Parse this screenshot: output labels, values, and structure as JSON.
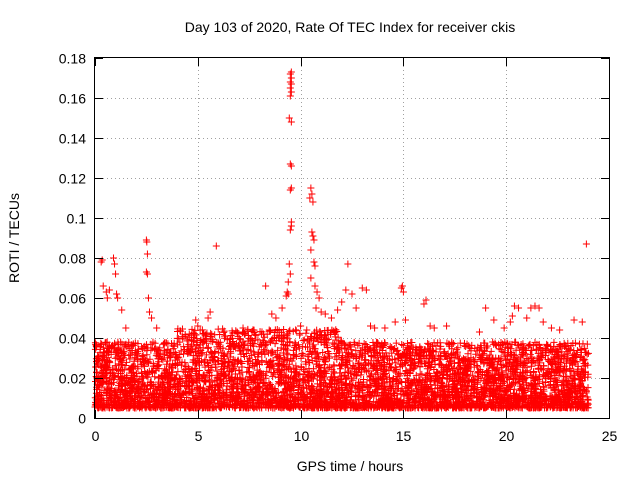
{
  "chart_data": {
    "type": "scatter",
    "title": "Day 103 of 2020, Rate Of TEC Index for receiver ckis",
    "xlabel": "GPS time / hours",
    "ylabel": "ROTI / TECUs",
    "xlim": [
      0,
      25
    ],
    "ylim": [
      0,
      0.18
    ],
    "xticks": [
      "0",
      "5",
      "10",
      "15",
      "20",
      "25"
    ],
    "yticks": [
      "0",
      "0.02",
      "0.04",
      "0.06",
      "0.08",
      "0.1",
      "0.12",
      "0.14",
      "0.16",
      "0.18"
    ],
    "grid": true,
    "marker": "+",
    "color": "#ff0000",
    "background_band": {
      "x_range": [
        0,
        24
      ],
      "typical_low": 0.005,
      "typical_high": 0.035,
      "description": "dense cloud of points, most ROTI values between about 0.005 and 0.035 TECU"
    },
    "series": [
      {
        "name": "ROTI",
        "points": [
          [
            0.3,
            0.078
          ],
          [
            0.35,
            0.079
          ],
          [
            0.4,
            0.066
          ],
          [
            0.55,
            0.063
          ],
          [
            0.6,
            0.06
          ],
          [
            0.7,
            0.064
          ],
          [
            0.9,
            0.08
          ],
          [
            0.95,
            0.077
          ],
          [
            1.0,
            0.072
          ],
          [
            1.05,
            0.062
          ],
          [
            1.1,
            0.06
          ],
          [
            1.3,
            0.054
          ],
          [
            1.5,
            0.045
          ],
          [
            2.5,
            0.089
          ],
          [
            2.52,
            0.088
          ],
          [
            2.55,
            0.082
          ],
          [
            2.5,
            0.073
          ],
          [
            2.55,
            0.072
          ],
          [
            2.6,
            0.06
          ],
          [
            2.65,
            0.053
          ],
          [
            2.75,
            0.05
          ],
          [
            3.0,
            0.045
          ],
          [
            4.9,
            0.049
          ],
          [
            5.0,
            0.046
          ],
          [
            5.5,
            0.05
          ],
          [
            5.6,
            0.053
          ],
          [
            5.9,
            0.086
          ],
          [
            7.2,
            0.045
          ],
          [
            8.3,
            0.066
          ],
          [
            8.6,
            0.052
          ],
          [
            8.8,
            0.05
          ],
          [
            9.1,
            0.055
          ],
          [
            9.3,
            0.061
          ],
          [
            9.35,
            0.063
          ],
          [
            9.4,
            0.062
          ],
          [
            9.4,
            0.068
          ],
          [
            9.45,
            0.077
          ],
          [
            9.5,
            0.072
          ],
          [
            9.5,
            0.094
          ],
          [
            9.55,
            0.096
          ],
          [
            9.55,
            0.098
          ],
          [
            9.5,
            0.114
          ],
          [
            9.55,
            0.115
          ],
          [
            9.5,
            0.127
          ],
          [
            9.55,
            0.126
          ],
          [
            9.45,
            0.15
          ],
          [
            9.55,
            0.148
          ],
          [
            9.5,
            0.161
          ],
          [
            9.55,
            0.163
          ],
          [
            9.5,
            0.165
          ],
          [
            9.55,
            0.167
          ],
          [
            9.5,
            0.168
          ],
          [
            9.55,
            0.17
          ],
          [
            9.5,
            0.172
          ],
          [
            9.55,
            0.173
          ],
          [
            10.0,
            0.046
          ],
          [
            10.3,
            0.044
          ],
          [
            10.45,
            0.11
          ],
          [
            10.5,
            0.115
          ],
          [
            10.55,
            0.112
          ],
          [
            10.6,
            0.108
          ],
          [
            10.55,
            0.093
          ],
          [
            10.6,
            0.091
          ],
          [
            10.65,
            0.089
          ],
          [
            10.5,
            0.084
          ],
          [
            10.65,
            0.078
          ],
          [
            10.7,
            0.076
          ],
          [
            10.5,
            0.07
          ],
          [
            10.7,
            0.066
          ],
          [
            10.8,
            0.063
          ],
          [
            10.9,
            0.06
          ],
          [
            10.75,
            0.055
          ],
          [
            11.0,
            0.053
          ],
          [
            11.2,
            0.052
          ],
          [
            11.5,
            0.05
          ],
          [
            11.8,
            0.054
          ],
          [
            12.0,
            0.058
          ],
          [
            12.2,
            0.064
          ],
          [
            12.3,
            0.077
          ],
          [
            12.5,
            0.062
          ],
          [
            12.7,
            0.055
          ],
          [
            13.0,
            0.065
          ],
          [
            13.2,
            0.064
          ],
          [
            13.4,
            0.046
          ],
          [
            13.6,
            0.045
          ],
          [
            14.1,
            0.045
          ],
          [
            14.6,
            0.048
          ],
          [
            14.9,
            0.065
          ],
          [
            14.95,
            0.066
          ],
          [
            15.0,
            0.063
          ],
          [
            15.1,
            0.049
          ],
          [
            16.0,
            0.057
          ],
          [
            16.1,
            0.059
          ],
          [
            16.3,
            0.046
          ],
          [
            16.5,
            0.045
          ],
          [
            17.1,
            0.046
          ],
          [
            18.7,
            0.043
          ],
          [
            19.0,
            0.055
          ],
          [
            19.4,
            0.049
          ],
          [
            19.9,
            0.045
          ],
          [
            20.2,
            0.048
          ],
          [
            20.3,
            0.051
          ],
          [
            20.4,
            0.056
          ],
          [
            20.6,
            0.055
          ],
          [
            21.0,
            0.05
          ],
          [
            21.2,
            0.055
          ],
          [
            21.4,
            0.056
          ],
          [
            21.6,
            0.055
          ],
          [
            21.8,
            0.048
          ],
          [
            22.2,
            0.045
          ],
          [
            22.6,
            0.044
          ],
          [
            23.3,
            0.049
          ],
          [
            23.7,
            0.048
          ],
          [
            23.9,
            0.087
          ]
        ]
      }
    ]
  }
}
